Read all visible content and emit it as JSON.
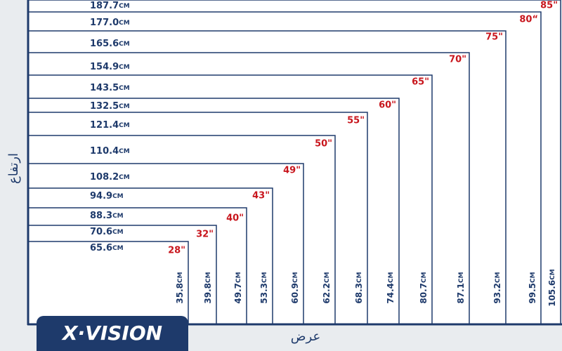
{
  "unit": "CM",
  "axis_height": "ارتفاع",
  "axis_width": "عرض",
  "brand": "X·VISION",
  "sizes": [
    {
      "size": "85\"",
      "width": "105.6",
      "height": "187.7"
    },
    {
      "size": "80“",
      "width": "99.5",
      "height": "177.0"
    },
    {
      "size": "75\"",
      "width": "93.2",
      "height": "165.6"
    },
    {
      "size": "70\"",
      "width": "87.1",
      "height": "154.9"
    },
    {
      "size": "65\"",
      "width": "80.7",
      "height": "143.5"
    },
    {
      "size": "60\"",
      "width": "74.4",
      "height": "132.5"
    },
    {
      "size": "55\"",
      "width": "68.3",
      "height": "121.4"
    },
    {
      "size": "50\"",
      "width": "62.2",
      "height": "110.4"
    },
    {
      "size": "49\"",
      "width": "60.9",
      "height": "108.2"
    },
    {
      "size": "43\"",
      "width": "53.3",
      "height": "94.9"
    },
    {
      "size": "40\"",
      "width": "49.7",
      "height": "88.3"
    },
    {
      "size": "32\"",
      "width": "39.8",
      "height": "70.6"
    },
    {
      "size": "28\"",
      "width": "35.8",
      "height": "65.6"
    }
  ]
}
